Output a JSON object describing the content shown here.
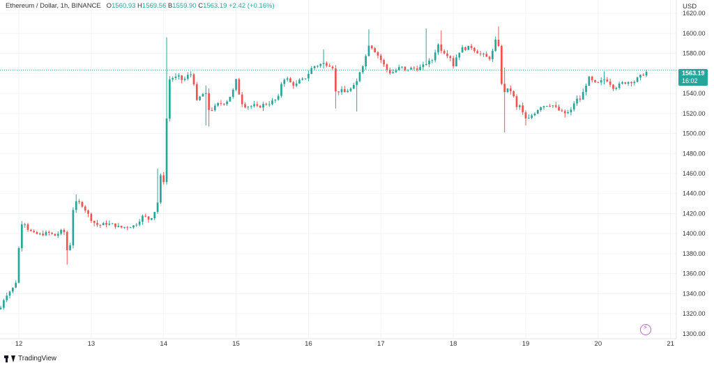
{
  "header": {
    "symbol": "Ethereum / Dollar, 1h, BINANCE",
    "o_label": "O",
    "o_value": "1560.93",
    "h_label": "H",
    "h_value": "1569.56",
    "l_label": "B",
    "l_value": "1559.90",
    "c_label": "C",
    "c_value": "1563.19",
    "change": "+2.42 (+0.16%)"
  },
  "axis": {
    "currency": "USD",
    "current_price": "1563.19",
    "countdown": "16:02"
  },
  "footer": {
    "logo_text": "TradingView"
  },
  "icons": {
    "flash": "flash-icon",
    "logo": "tradingview-logo-icon"
  },
  "colors": {
    "up": "#26a69a",
    "down": "#ef5350",
    "grid": "#f0f3fa",
    "current_line": "#26a69a",
    "flash": "#ba68c8"
  },
  "chart_data": {
    "type": "candlestick",
    "title": "Ethereum / Dollar, 1h, BINANCE",
    "ylim": [
      1295,
      1625
    ],
    "y_ticks": [
      1300,
      1320,
      1340,
      1360,
      1380,
      1400,
      1420,
      1440,
      1460,
      1480,
      1500,
      1520,
      1540,
      1560,
      1580,
      1600,
      1620
    ],
    "x_ticks": [
      {
        "label": "12",
        "day": 12
      },
      {
        "label": "13",
        "day": 13
      },
      {
        "label": "14",
        "day": 14
      },
      {
        "label": "15",
        "day": 15
      },
      {
        "label": "16",
        "day": 16
      },
      {
        "label": "17",
        "day": 17
      },
      {
        "label": "18",
        "day": 18
      },
      {
        "label": "19",
        "day": 19
      },
      {
        "label": "20",
        "day": 20
      },
      {
        "label": "21",
        "day": 21
      }
    ],
    "x_range_days": [
      11.74,
      21.08
    ],
    "grid": true,
    "current_price": 1563.19,
    "waypoints": [
      [
        11.75,
        1326
      ],
      [
        11.8,
        1336
      ],
      [
        11.86,
        1342
      ],
      [
        11.9,
        1343
      ],
      [
        11.96,
        1352
      ],
      [
        12.02,
        1402
      ],
      [
        12.05,
        1414
      ],
      [
        12.08,
        1411
      ],
      [
        12.12,
        1405
      ],
      [
        12.2,
        1400
      ],
      [
        12.3,
        1399
      ],
      [
        12.4,
        1401
      ],
      [
        12.5,
        1398
      ],
      [
        12.58,
        1402
      ],
      [
        12.62,
        1405
      ],
      [
        12.65,
        1384
      ],
      [
        12.7,
        1383
      ],
      [
        12.73,
        1405
      ],
      [
        12.76,
        1434
      ],
      [
        12.8,
        1430
      ],
      [
        12.85,
        1431
      ],
      [
        12.9,
        1426
      ],
      [
        12.95,
        1420
      ],
      [
        13.02,
        1412
      ],
      [
        13.1,
        1408
      ],
      [
        13.2,
        1410
      ],
      [
        13.3,
        1409
      ],
      [
        13.4,
        1406
      ],
      [
        13.5,
        1407
      ],
      [
        13.6,
        1408
      ],
      [
        13.66,
        1413
      ],
      [
        13.72,
        1418
      ],
      [
        13.8,
        1414
      ],
      [
        13.86,
        1419
      ],
      [
        13.92,
        1432
      ],
      [
        13.96,
        1458
      ],
      [
        14.02,
        1450
      ],
      [
        14.05,
        1540
      ],
      [
        14.09,
        1557
      ],
      [
        14.14,
        1555
      ],
      [
        14.2,
        1557
      ],
      [
        14.26,
        1553
      ],
      [
        14.3,
        1555
      ],
      [
        14.36,
        1560
      ],
      [
        14.4,
        1558
      ],
      [
        14.46,
        1531
      ],
      [
        14.52,
        1539
      ],
      [
        14.58,
        1540
      ],
      [
        14.63,
        1522
      ],
      [
        14.7,
        1526
      ],
      [
        14.76,
        1530
      ],
      [
        14.82,
        1530
      ],
      [
        14.88,
        1533
      ],
      [
        14.95,
        1541
      ],
      [
        15.0,
        1553
      ],
      [
        15.06,
        1534
      ],
      [
        15.1,
        1528
      ],
      [
        15.18,
        1527
      ],
      [
        15.25,
        1528
      ],
      [
        15.3,
        1526
      ],
      [
        15.38,
        1529
      ],
      [
        15.45,
        1530
      ],
      [
        15.5,
        1532
      ],
      [
        15.58,
        1535
      ],
      [
        15.64,
        1555
      ],
      [
        15.7,
        1555
      ],
      [
        15.76,
        1550
      ],
      [
        15.82,
        1548
      ],
      [
        15.88,
        1553
      ],
      [
        15.94,
        1554
      ],
      [
        16.0,
        1560
      ],
      [
        16.06,
        1567
      ],
      [
        16.12,
        1568
      ],
      [
        16.2,
        1570
      ],
      [
        16.28,
        1569
      ],
      [
        16.34,
        1566
      ],
      [
        16.38,
        1538
      ],
      [
        16.44,
        1545
      ],
      [
        16.48,
        1540
      ],
      [
        16.54,
        1543
      ],
      [
        16.6,
        1545
      ],
      [
        16.66,
        1550
      ],
      [
        16.72,
        1565
      ],
      [
        16.78,
        1572
      ],
      [
        16.82,
        1590
      ],
      [
        16.88,
        1586
      ],
      [
        16.94,
        1580
      ],
      [
        16.98,
        1576
      ],
      [
        17.02,
        1571
      ],
      [
        17.08,
        1564
      ],
      [
        17.14,
        1560
      ],
      [
        17.2,
        1563
      ],
      [
        17.28,
        1567
      ],
      [
        17.34,
        1562
      ],
      [
        17.38,
        1565
      ],
      [
        17.44,
        1565
      ],
      [
        17.5,
        1565
      ],
      [
        17.56,
        1566
      ],
      [
        17.62,
        1570
      ],
      [
        17.68,
        1572
      ],
      [
        17.72,
        1574
      ],
      [
        17.78,
        1590
      ],
      [
        17.84,
        1583
      ],
      [
        17.9,
        1580
      ],
      [
        17.96,
        1576
      ],
      [
        18.0,
        1568
      ],
      [
        18.06,
        1580
      ],
      [
        18.12,
        1585
      ],
      [
        18.18,
        1585
      ],
      [
        18.24,
        1587
      ],
      [
        18.3,
        1583
      ],
      [
        18.36,
        1580
      ],
      [
        18.42,
        1578
      ],
      [
        18.48,
        1575
      ],
      [
        18.52,
        1576
      ],
      [
        18.58,
        1592
      ],
      [
        18.62,
        1594
      ],
      [
        18.66,
        1550
      ],
      [
        18.7,
        1542
      ],
      [
        18.76,
        1544
      ],
      [
        18.82,
        1542
      ],
      [
        18.86,
        1525
      ],
      [
        18.92,
        1528
      ],
      [
        18.98,
        1516
      ],
      [
        19.02,
        1513
      ],
      [
        19.08,
        1518
      ],
      [
        19.14,
        1522
      ],
      [
        19.2,
        1527
      ],
      [
        19.26,
        1528
      ],
      [
        19.32,
        1529
      ],
      [
        19.38,
        1528
      ],
      [
        19.44,
        1524
      ],
      [
        19.5,
        1521
      ],
      [
        19.56,
        1520
      ],
      [
        19.62,
        1522
      ],
      [
        19.66,
        1530
      ],
      [
        19.72,
        1535
      ],
      [
        19.76,
        1534
      ],
      [
        19.82,
        1547
      ],
      [
        19.88,
        1556
      ],
      [
        19.94,
        1550
      ],
      [
        20.0,
        1550
      ],
      [
        20.08,
        1554
      ],
      [
        20.14,
        1553
      ],
      [
        20.2,
        1546
      ],
      [
        20.26,
        1547
      ],
      [
        20.32,
        1550
      ],
      [
        20.38,
        1551
      ],
      [
        20.44,
        1552
      ],
      [
        20.5,
        1552
      ],
      [
        20.56,
        1556
      ],
      [
        20.62,
        1559
      ],
      [
        20.66,
        1561
      ],
      [
        20.7,
        1563.19
      ]
    ],
    "spikes": [
      {
        "day": 14.05,
        "high": 1596,
        "low": 1540
      },
      {
        "day": 12.65,
        "high": 1395,
        "low": 1369
      },
      {
        "day": 12.8,
        "high": 1439,
        "low": 1428
      },
      {
        "day": 13.92,
        "high": 1465,
        "low": 1432
      },
      {
        "day": 14.58,
        "high": 1548,
        "low": 1508
      },
      {
        "day": 14.63,
        "high": 1545,
        "low": 1507
      },
      {
        "day": 16.2,
        "high": 1584,
        "low": 1565
      },
      {
        "day": 16.38,
        "high": 1562,
        "low": 1525
      },
      {
        "day": 16.66,
        "high": 1555,
        "low": 1522
      },
      {
        "day": 16.82,
        "high": 1604,
        "low": 1583
      },
      {
        "day": 17.62,
        "high": 1605,
        "low": 1568
      },
      {
        "day": 17.84,
        "high": 1603,
        "low": 1580
      },
      {
        "day": 18.62,
        "high": 1607,
        "low": 1590
      },
      {
        "day": 18.7,
        "high": 1566,
        "low": 1530
      },
      {
        "day": 18.72,
        "high": 1545,
        "low": 1501
      },
      {
        "day": 19.02,
        "high": 1521,
        "low": 1508
      },
      {
        "day": 19.56,
        "high": 1524,
        "low": 1516
      },
      {
        "day": 20.1,
        "high": 1562,
        "low": 1549
      },
      {
        "day": 20.7,
        "high": 1569.56,
        "low": 1559.9
      }
    ]
  }
}
